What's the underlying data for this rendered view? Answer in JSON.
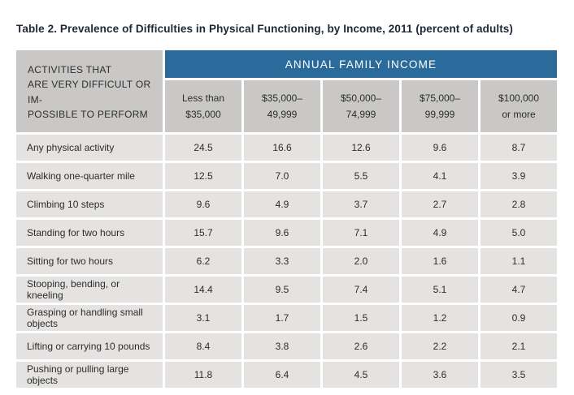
{
  "colors": {
    "band_blue": "#2a6b9c",
    "header_gray": "#c9c8c7",
    "row_gray": "#e5e3e1",
    "title_text": "#1e2836",
    "body_text": "#2d2d2d",
    "band_text": "#ffffff"
  },
  "title": "Table 2. Prevalence of Difficulties in Physical Functioning, by Income, 2011 (percent of adults)",
  "table": {
    "band_label": "ANNUAL FAMILY INCOME",
    "corner_label": "ACTIVITIES THAT\nARE VERY DIFFICULT OR IM-\nPOSSIBLE TO PERFORM",
    "columns": [
      "Less than\n$35,000",
      "$35,000–\n49,999",
      "$50,000–\n74,999",
      "$75,000–\n99,999",
      "$100,000\nor more"
    ],
    "rows": [
      {
        "label": "Any physical activity",
        "values": [
          "24.5",
          "16.6",
          "12.6",
          "9.6",
          "8.7"
        ]
      },
      {
        "label": "Walking one-quarter mile",
        "values": [
          "12.5",
          "7.0",
          "5.5",
          "4.1",
          "3.9"
        ]
      },
      {
        "label": "Climbing 10 steps",
        "values": [
          "9.6",
          "4.9",
          "3.7",
          "2.7",
          "2.8"
        ]
      },
      {
        "label": "Standing for two hours",
        "values": [
          "15.7",
          "9.6",
          "7.1",
          "4.9",
          "5.0"
        ]
      },
      {
        "label": "Sitting for two hours",
        "values": [
          "6.2",
          "3.3",
          "2.0",
          "1.6",
          "1.1"
        ]
      },
      {
        "label": "Stooping, bending, or kneeling",
        "values": [
          "14.4",
          "9.5",
          "7.4",
          "5.1",
          "4.7"
        ]
      },
      {
        "label": "Grasping or handling small objects",
        "values": [
          "3.1",
          "1.7",
          "1.5",
          "1.2",
          "0.9"
        ]
      },
      {
        "label": "Lifting or carrying 10 pounds",
        "values": [
          "8.4",
          "3.8",
          "2.6",
          "2.2",
          "2.1"
        ]
      },
      {
        "label": "Pushing or pulling large objects",
        "values": [
          "11.8",
          "6.4",
          "4.5",
          "3.6",
          "3.5"
        ]
      }
    ]
  }
}
